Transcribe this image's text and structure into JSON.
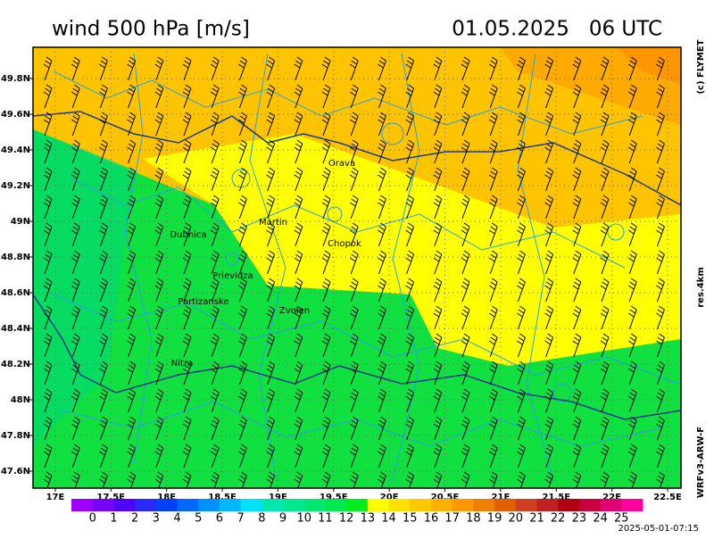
{
  "map": {
    "title": "wind 500 hPa [m/s]",
    "valid_time": "01.05.2025   06 UTC",
    "credit": "(c) FLYMET",
    "resolution": "res.4km",
    "model": "WRFv3-ARW-F",
    "generated": "2025-05-01-07:15",
    "xlim": [
      16.8,
      22.62
    ],
    "ylim": [
      47.505,
      49.975
    ],
    "xticks": [
      {
        "value": 17,
        "label": "17E"
      },
      {
        "value": 17.5,
        "label": "17.5E"
      },
      {
        "value": 18,
        "label": "18E"
      },
      {
        "value": 18.5,
        "label": "18.5E"
      },
      {
        "value": 19,
        "label": "19E"
      },
      {
        "value": 19.5,
        "label": "19.5E"
      },
      {
        "value": 20,
        "label": "20E"
      },
      {
        "value": 20.5,
        "label": "20.5E"
      },
      {
        "value": 21,
        "label": "21E"
      },
      {
        "value": 21.5,
        "label": "21.5E"
      },
      {
        "value": 22,
        "label": "22E"
      },
      {
        "value": 22.5,
        "label": "22.5E"
      }
    ],
    "yticks": [
      {
        "value": 49.8,
        "label": "49.8N"
      },
      {
        "value": 49.6,
        "label": "49.6N"
      },
      {
        "value": 49.4,
        "label": "49.4N"
      },
      {
        "value": 49.2,
        "label": "49.2N"
      },
      {
        "value": 49,
        "label": "49N"
      },
      {
        "value": 48.8,
        "label": "48.8N"
      },
      {
        "value": 48.6,
        "label": "48.6N"
      },
      {
        "value": 48.4,
        "label": "48.4N"
      },
      {
        "value": 48.2,
        "label": "48.2N"
      },
      {
        "value": 48,
        "label": "48N"
      },
      {
        "value": 47.8,
        "label": "47.8N"
      },
      {
        "value": 47.6,
        "label": "47.6N"
      }
    ],
    "cities": [
      "Orava",
      "Martin",
      "Dubnica",
      "Chopok",
      "Prievidza",
      "Partizanske",
      "Zvolen",
      "Nitra"
    ],
    "colorbar": {
      "levels": [
        0,
        1,
        2,
        3,
        4,
        5,
        6,
        7,
        8,
        9,
        10,
        11,
        12,
        13,
        14,
        15,
        16,
        17,
        18,
        19,
        20,
        21,
        22,
        23,
        24,
        25
      ],
      "colors": [
        "#a000ff",
        "#7800ff",
        "#5000ff",
        "#2828ff",
        "#0040ff",
        "#0068ff",
        "#0090ff",
        "#00b8ff",
        "#00e0ff",
        "#00e8b0",
        "#00e890",
        "#00e870",
        "#00e850",
        "#00ee20",
        "#ffff00",
        "#ffe000",
        "#ffc800",
        "#ffb000",
        "#ff9800",
        "#f08000",
        "#e06000",
        "#d04020",
        "#c02020",
        "#b00010",
        "#c80040",
        "#e00070",
        "#ff00a0"
      ]
    }
  }
}
